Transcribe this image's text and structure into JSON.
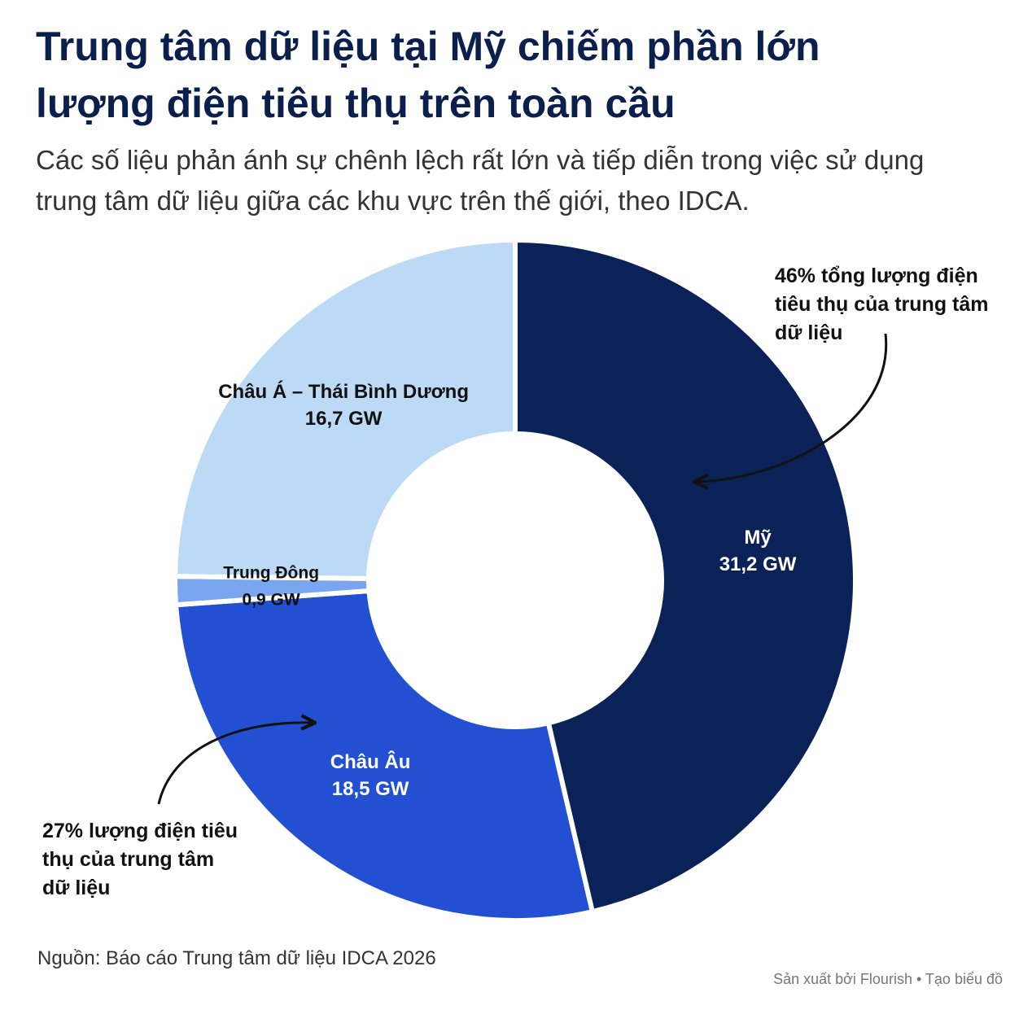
{
  "chart_data": {
    "type": "donut",
    "title": "Trung tâm dữ liệu tại Mỹ chiếm phần lớn lượng điện tiêu thụ trên toàn cầu",
    "subtitle": "Các số liệu phản ánh sự chênh lệch rất lớn và tiếp diễn trong việc sử dụng trung tâm dữ liệu giữa các khu vực trên thế giới, theo IDCA.",
    "categories": [
      "Mỹ",
      "Châu Âu",
      "Trung Đông",
      "Châu Á – Thái Bình Dương"
    ],
    "values": [
      31.2,
      18.5,
      0.9,
      16.7
    ],
    "value_labels": [
      "31,2 GW",
      "18,5 GW",
      "0,9 GW",
      "16,7 GW"
    ],
    "colors": [
      "#0b2259",
      "#2350d2",
      "#7aa6ef",
      "#bcd9f5"
    ],
    "annotations": [
      "46% tổng lượng điện tiêu thụ của trung tâm dữ liệu",
      "27% lượng điện tiêu thụ của trung tâm dữ liệu"
    ],
    "source": "Nguồn: Báo cáo Trung tâm dữ liệu IDCA 2026",
    "footer": "Sản xuất bởi Flourish • Tạo biểu đồ"
  }
}
